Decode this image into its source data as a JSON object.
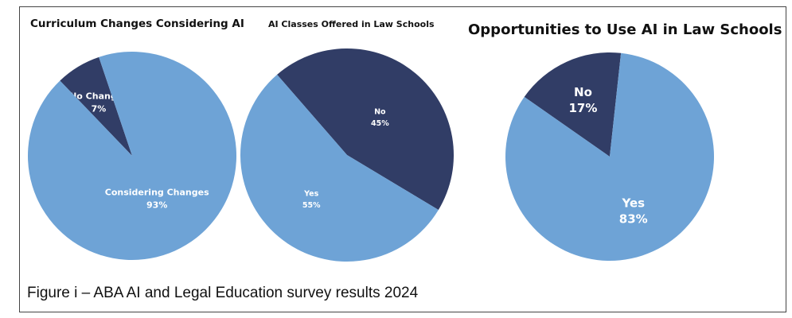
{
  "colors": {
    "light_blue": "#6ea3d6",
    "navy": "#313d66",
    "label_text": "#ffffff"
  },
  "caption": "Figure i – ABA AI and Legal Education survey results 2024",
  "chart_data": [
    {
      "type": "pie",
      "title": "Curriculum Changes Considering AI",
      "slices": [
        {
          "label": "No Changes",
          "value": 7,
          "display": "7%",
          "color": "#313d66"
        },
        {
          "label": "Considering Changes",
          "value": 93,
          "display": "93%",
          "color": "#6ea3d6"
        }
      ]
    },
    {
      "type": "pie",
      "title": "AI Classes Offered in Law Schools",
      "slices": [
        {
          "label": "No",
          "value": 45,
          "display": "45%",
          "color": "#313d66"
        },
        {
          "label": "Yes",
          "value": 55,
          "display": "55%",
          "color": "#6ea3d6"
        }
      ]
    },
    {
      "type": "pie",
      "title": "Opportunities to Use AI in Law Schools",
      "slices": [
        {
          "label": "No",
          "value": 17,
          "display": "17%",
          "color": "#313d66"
        },
        {
          "label": "Yes",
          "value": 83,
          "display": "83%",
          "color": "#6ea3d6"
        }
      ]
    }
  ]
}
